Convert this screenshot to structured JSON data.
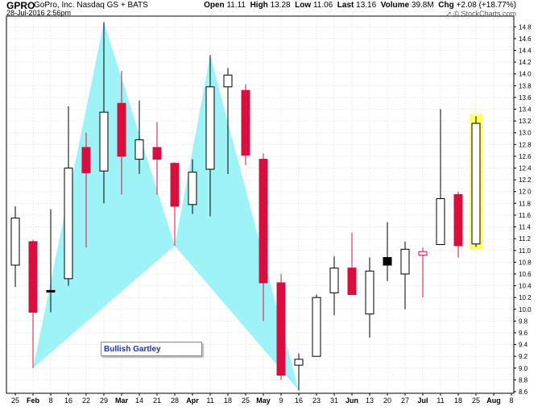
{
  "header": {
    "ticker": "GPRO",
    "company": "GoPro, Inc.  Nasdaq GS + BATS",
    "datetime": "28-Jul-2016 2:56pm",
    "open_label": "Open",
    "open_value": "11.11",
    "high_label": "High",
    "high_value": "13.28",
    "low_label": "Low",
    "low_value": "11.06",
    "last_label": "Last",
    "last_value": "13.16",
    "volume_label": "Volume",
    "volume_value": "39.8M",
    "chg_label": "Chg",
    "chg_value": "+2.08 (+18.77%)",
    "brand": "© StockCharts.com",
    "brand_icon": "trend-arrow-icon"
  },
  "annotation": {
    "label": "Bullish Gartley"
  },
  "colors": {
    "down": "#d80f3e",
    "up": "#ffffff",
    "pattern": "#9ef3f7",
    "highlight": "#ffff66",
    "grid": "#cfcfcf"
  },
  "chart_data": {
    "type": "candlestick",
    "ylim": [
      8.6,
      14.9
    ],
    "yticks": [
      8.6,
      8.8,
      9.0,
      9.2,
      9.4,
      9.6,
      9.8,
      10.0,
      10.2,
      10.4,
      10.6,
      10.8,
      11.0,
      11.2,
      11.4,
      11.6,
      11.8,
      12.0,
      12.2,
      12.4,
      12.6,
      12.8,
      13.0,
      13.2,
      13.4,
      13.6,
      13.8,
      14.0,
      14.2,
      14.4,
      14.6,
      14.8
    ],
    "xticks": [
      {
        "label": "25",
        "slot": 0
      },
      {
        "label": "Feb",
        "slot": 1,
        "bold": true
      },
      {
        "label": "8",
        "slot": 2
      },
      {
        "label": "16",
        "slot": 3
      },
      {
        "label": "22",
        "slot": 4
      },
      {
        "label": "29",
        "slot": 5
      },
      {
        "label": "Mar",
        "slot": 6,
        "bold": true
      },
      {
        "label": "14",
        "slot": 7
      },
      {
        "label": "21",
        "slot": 8
      },
      {
        "label": "28",
        "slot": 9
      },
      {
        "label": "Apr",
        "slot": 10,
        "bold": true
      },
      {
        "label": "11",
        "slot": 11
      },
      {
        "label": "18",
        "slot": 12
      },
      {
        "label": "25",
        "slot": 13
      },
      {
        "label": "May",
        "slot": 14,
        "bold": true
      },
      {
        "label": "9",
        "slot": 15
      },
      {
        "label": "16",
        "slot": 16
      },
      {
        "label": "23",
        "slot": 17
      },
      {
        "label": "31",
        "slot": 18
      },
      {
        "label": "Jun",
        "slot": 19,
        "bold": true
      },
      {
        "label": "13",
        "slot": 20
      },
      {
        "label": "20",
        "slot": 21
      },
      {
        "label": "27",
        "slot": 22
      },
      {
        "label": "Jul",
        "slot": 23,
        "bold": true
      },
      {
        "label": "11",
        "slot": 24
      },
      {
        "label": "18",
        "slot": 25
      },
      {
        "label": "25",
        "slot": 26
      },
      {
        "label": "Aug",
        "slot": 27,
        "bold": true
      },
      {
        "label": "8",
        "slot": 28
      }
    ],
    "candles": [
      {
        "week": "25",
        "open": 10.75,
        "high": 11.75,
        "low": 10.38,
        "close": 11.55,
        "color": "white"
      },
      {
        "week": "Feb",
        "open": 11.15,
        "high": 11.18,
        "low": 9.0,
        "close": 9.95,
        "color": "red"
      },
      {
        "week": "8",
        "open": 10.32,
        "high": 11.7,
        "low": 9.95,
        "close": 10.3,
        "color": "black"
      },
      {
        "week": "16",
        "open": 10.52,
        "high": 13.45,
        "low": 10.4,
        "close": 12.4,
        "color": "white"
      },
      {
        "week": "22",
        "open": 12.75,
        "high": 13.0,
        "low": 11.05,
        "close": 12.32,
        "color": "red"
      },
      {
        "week": "29",
        "open": 12.35,
        "high": 14.88,
        "low": 11.8,
        "close": 13.35,
        "color": "white"
      },
      {
        "week": "Mar",
        "open": 13.5,
        "high": 14.05,
        "low": 11.95,
        "close": 12.6,
        "color": "red"
      },
      {
        "week": "14",
        "open": 12.55,
        "high": 13.55,
        "low": 12.3,
        "close": 12.88,
        "color": "white"
      },
      {
        "week": "21",
        "open": 12.75,
        "high": 13.18,
        "low": 11.95,
        "close": 12.55,
        "color": "red"
      },
      {
        "week": "28",
        "open": 12.48,
        "high": 12.5,
        "low": 11.08,
        "close": 11.75,
        "color": "red"
      },
      {
        "week": "Apr",
        "open": 11.78,
        "high": 12.55,
        "low": 11.62,
        "close": 12.33,
        "color": "white"
      },
      {
        "week": "11",
        "open": 12.38,
        "high": 14.32,
        "low": 11.58,
        "close": 13.78,
        "color": "white"
      },
      {
        "week": "18",
        "open": 13.78,
        "high": 14.1,
        "low": 12.3,
        "close": 13.98,
        "color": "white"
      },
      {
        "week": "25",
        "open": 13.72,
        "high": 13.82,
        "low": 12.45,
        "close": 12.62,
        "color": "red"
      },
      {
        "week": "May",
        "open": 12.55,
        "high": 12.65,
        "low": 9.8,
        "close": 10.45,
        "color": "red"
      },
      {
        "week": "9",
        "open": 10.45,
        "high": 10.6,
        "low": 8.8,
        "close": 8.88,
        "color": "red"
      },
      {
        "week": "16",
        "open": 9.05,
        "high": 9.25,
        "low": 8.62,
        "close": 9.15,
        "color": "white"
      },
      {
        "week": "23",
        "open": 9.2,
        "high": 10.25,
        "low": 9.2,
        "close": 10.2,
        "color": "white"
      },
      {
        "week": "31",
        "open": 10.28,
        "high": 10.9,
        "low": 9.9,
        "close": 10.7,
        "color": "white"
      },
      {
        "week": "Jun",
        "open": 10.7,
        "high": 11.3,
        "low": 10.25,
        "close": 10.25,
        "color": "red"
      },
      {
        "week": "13",
        "open": 9.92,
        "high": 10.88,
        "low": 9.52,
        "close": 10.65,
        "color": "white"
      },
      {
        "week": "20",
        "open": 10.75,
        "high": 11.48,
        "low": 10.48,
        "close": 10.88,
        "color": "black"
      },
      {
        "week": "27",
        "open": 10.6,
        "high": 11.15,
        "low": 10.0,
        "close": 11.02,
        "color": "white"
      },
      {
        "week": "Jul",
        "open": 10.98,
        "high": 11.05,
        "low": 10.2,
        "close": 10.92,
        "color": "pink"
      },
      {
        "week": "11",
        "open": 11.1,
        "high": 13.4,
        "low": 11.1,
        "close": 11.88,
        "color": "white"
      },
      {
        "week": "18",
        "open": 11.95,
        "high": 12.0,
        "low": 10.88,
        "close": 11.08,
        "color": "red"
      },
      {
        "week": "25",
        "open": 11.11,
        "high": 13.28,
        "low": 11.06,
        "close": 13.16,
        "color": "white",
        "highlight": true
      }
    ],
    "pattern": {
      "name": "Bullish Gartley",
      "points": [
        {
          "slot": 1,
          "price": 9.0
        },
        {
          "slot": 5,
          "price": 14.88
        },
        {
          "slot": 9,
          "price": 11.08
        },
        {
          "slot": 11,
          "price": 14.32
        },
        {
          "slot": 16,
          "price": 8.62
        }
      ]
    }
  }
}
